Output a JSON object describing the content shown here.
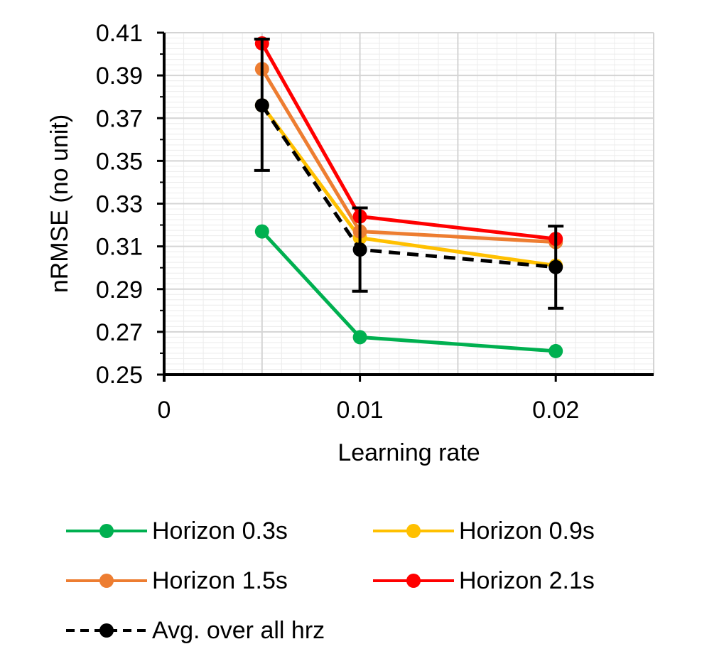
{
  "chart_data": {
    "type": "line",
    "xlabel": "Learning rate",
    "ylabel": "nRMSE (no unit)",
    "xlim": [
      0,
      0.025
    ],
    "ylim": [
      0.25,
      0.41
    ],
    "x_ticks": [
      {
        "value": 0,
        "label": "0"
      },
      {
        "value": 0.01,
        "label": "0.01"
      },
      {
        "value": 0.02,
        "label": "0.02"
      }
    ],
    "y_ticks": [
      {
        "value": 0.25,
        "label": "0.25"
      },
      {
        "value": 0.27,
        "label": "0.27"
      },
      {
        "value": 0.29,
        "label": "0.29"
      },
      {
        "value": 0.31,
        "label": "0.31"
      },
      {
        "value": 0.33,
        "label": "0.33"
      },
      {
        "value": 0.35,
        "label": "0.35"
      },
      {
        "value": 0.37,
        "label": "0.37"
      },
      {
        "value": 0.39,
        "label": "0.39"
      },
      {
        "value": 0.41,
        "label": "0.41"
      }
    ],
    "grid": true,
    "x": [
      0.005,
      0.01,
      0.02
    ],
    "series": [
      {
        "name": "Horizon 0.3s",
        "color": "#00b050",
        "dashed": false,
        "values": [
          0.317,
          0.2675,
          0.261
        ]
      },
      {
        "name": "Horizon 0.9s",
        "color": "#ffc000",
        "dashed": false,
        "values": [
          0.376,
          0.314,
          0.301
        ]
      },
      {
        "name": "Horizon 1.5s",
        "color": "#ed7d31",
        "dashed": false,
        "values": [
          0.393,
          0.317,
          0.312
        ]
      },
      {
        "name": "Horizon 2.1s",
        "color": "#ff0000",
        "dashed": false,
        "values": [
          0.405,
          0.324,
          0.3135
        ]
      },
      {
        "name": "Avg. over all hrz",
        "color": "#000000",
        "dashed": true,
        "values": [
          0.376,
          0.3085,
          0.3003
        ],
        "error_low": [
          0.3455,
          0.289,
          0.281
        ],
        "error_high": [
          0.407,
          0.328,
          0.3195
        ]
      }
    ],
    "legend_position": "bottom"
  }
}
